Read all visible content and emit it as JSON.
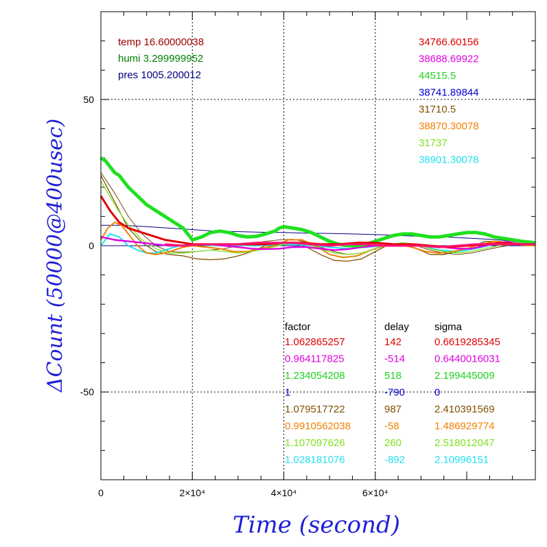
{
  "chart_data": {
    "type": "line",
    "title": "",
    "xlabel": "Time (second)",
    "ylabel": "ΔCount (50000@400usec)",
    "xlim": [
      0,
      95000
    ],
    "ylim": [
      -80,
      80
    ],
    "x_ticks": [
      {
        "value": 0,
        "label": "0"
      },
      {
        "value": 20000,
        "label": "2×10⁴"
      },
      {
        "value": 40000,
        "label": "4×10⁴"
      },
      {
        "value": 60000,
        "label": "6×10⁴"
      }
    ],
    "y_ticks": [
      {
        "value": 50,
        "label": "50"
      },
      {
        "value": 0,
        "label": "0"
      },
      {
        "value": -50,
        "label": "-50"
      }
    ],
    "grid": true,
    "env_labels": [
      {
        "text": "temp 16.60000038",
        "color": "#a00000"
      },
      {
        "text": "humi 3.299999952",
        "color": "#008000"
      },
      {
        "text": "pres 1005.200012",
        "color": "#000080"
      }
    ],
    "legend_values": [
      {
        "text": "34766.60156",
        "color": "#e00000"
      },
      {
        "text": "38688.69922",
        "color": "#e000e0"
      },
      {
        "text": "44515.5",
        "color": "#20d020"
      },
      {
        "text": "38741.89844",
        "color": "#0000d0"
      },
      {
        "text": "31710.5",
        "color": "#805000"
      },
      {
        "text": "38870.30078",
        "color": "#f08000"
      },
      {
        "text": "31737",
        "color": "#80e020"
      },
      {
        "text": "38901.30078",
        "color": "#20e0f0"
      }
    ],
    "table": {
      "headers": [
        "factor",
        "delay",
        "sigma"
      ],
      "rows": [
        {
          "factor": "1.062865257",
          "delay": "142",
          "sigma": "0.6619285345",
          "color": "#e00000"
        },
        {
          "factor": "0.964117825",
          "delay": "-514",
          "sigma": "0.6440016031",
          "color": "#e000e0"
        },
        {
          "factor": "1.234054208",
          "delay": "518",
          "sigma": "2.199445009",
          "color": "#20d020"
        },
        {
          "factor": "1",
          "delay": "-790",
          "sigma": "0",
          "color": "#0000d0"
        },
        {
          "factor": "1.079517722",
          "delay": "987",
          "sigma": "2.410391569",
          "color": "#805000"
        },
        {
          "factor": "0.9910562038",
          "delay": "-58",
          "sigma": "1.486929774",
          "color": "#f08000"
        },
        {
          "factor": "1.107097626",
          "delay": "260",
          "sigma": "2.518012047",
          "color": "#80e020"
        },
        {
          "factor": "1.028181076",
          "delay": "-892",
          "sigma": "2.10996151",
          "color": "#20e0f0"
        }
      ]
    },
    "series": [
      {
        "color": "#000080",
        "width": 1,
        "x": [
          0,
          5000,
          10000,
          15000,
          20000,
          25000,
          30000,
          35000,
          40000,
          45000,
          50000,
          55000,
          60000,
          65000,
          70000,
          75000,
          80000,
          85000,
          90000,
          95000
        ],
        "y": [
          7,
          7,
          6.5,
          6,
          5.5,
          5,
          4.8,
          4.6,
          4.5,
          4.3,
          4.2,
          4,
          3.8,
          3.5,
          3.2,
          3,
          2.6,
          2.2,
          1.6,
          1
        ]
      },
      {
        "color": "#000080",
        "width": 1,
        "x": [
          0,
          10000,
          20000,
          30000,
          40000,
          50000,
          60000,
          70000,
          80000,
          90000,
          95000
        ],
        "y": [
          0,
          0,
          0,
          0,
          0,
          0,
          0,
          0,
          0,
          0,
          0
        ]
      },
      {
        "color": "#805000",
        "width": 1.3,
        "x": [
          0,
          3000,
          6000,
          9000,
          12000,
          15000,
          18000,
          21000,
          24000,
          27000,
          30000,
          33000,
          36000,
          39000,
          42000,
          45000,
          48000,
          51000,
          54000,
          57000,
          60000,
          63000,
          66000,
          69000,
          72000,
          75000,
          78000,
          81000,
          84000,
          87000,
          90000,
          93000,
          95000
        ],
        "y": [
          24,
          15,
          6,
          1,
          -2,
          -3,
          -3.5,
          -4.5,
          -4.8,
          -4.5,
          -3.5,
          -2,
          0,
          1,
          1,
          -0.5,
          -3,
          -5,
          -5.3,
          -4.5,
          -2,
          0.5,
          0.5,
          -1,
          -3,
          -3,
          -2,
          -0.5,
          1.5,
          1.5,
          0.5,
          0,
          0
        ]
      },
      {
        "color": "#6b4a10",
        "width": 1,
        "x": [
          0,
          3000,
          6000,
          9000,
          12000,
          15000,
          18000,
          21000,
          24000,
          27000,
          30000,
          33000,
          36000,
          39000,
          42000,
          45000,
          48000,
          51000,
          54000,
          57000,
          60000,
          63000,
          66000,
          69000,
          72000,
          75000,
          78000,
          81000,
          84000,
          87000,
          90000,
          93000,
          95000
        ],
        "y": [
          25,
          18,
          10,
          4,
          0,
          -2,
          -2.2,
          -2,
          -1.5,
          -1,
          0,
          0.8,
          1.5,
          2,
          2.2,
          1.2,
          -0.5,
          -2,
          -3,
          -2.5,
          -1,
          0.5,
          0.8,
          0,
          -1.5,
          -2.5,
          -3,
          -2.5,
          -1.5,
          -0.5,
          0.3,
          0.5,
          0.5
        ]
      },
      {
        "color": "#20e0f0",
        "width": 2,
        "x": [
          0,
          2000,
          4000,
          6000,
          8000,
          10000,
          12000,
          14000,
          16000,
          18000,
          20000,
          22000,
          26000,
          30000,
          34000,
          38000,
          42000,
          46000,
          50000,
          54000,
          58000,
          62000,
          66000,
          70000,
          74000,
          78000,
          82000,
          86000,
          90000,
          95000
        ],
        "y": [
          0,
          4,
          3,
          0,
          -1.5,
          -2.5,
          -2.5,
          -1.5,
          -0.5,
          0.2,
          0.5,
          0.3,
          0,
          0.2,
          0,
          0.3,
          0.5,
          0,
          -0.5,
          -1,
          -0.5,
          0,
          0.5,
          0,
          -1.5,
          -2,
          -1,
          0.5,
          0.5,
          0.5
        ]
      },
      {
        "color": "#f08000",
        "width": 2,
        "x": [
          0,
          1500,
          3000,
          4500,
          6000,
          8000,
          10000,
          12000,
          14000,
          16000,
          18000,
          20000,
          23000,
          26000,
          29000,
          32000,
          35000,
          38000,
          41000,
          44000,
          47000,
          50000,
          53000,
          56000,
          59000,
          62000,
          65000,
          68000,
          71000,
          74000,
          77000,
          80000,
          83000,
          86000,
          89000,
          92000,
          95000
        ],
        "y": [
          2,
          6,
          8,
          7,
          4,
          0,
          -2.5,
          -3,
          -2.5,
          -1.5,
          -0.5,
          0,
          -0.5,
          -1,
          -2,
          -2,
          -1,
          0,
          2,
          2,
          0,
          -3,
          -4,
          -3.5,
          -1.5,
          0,
          0.5,
          -0.5,
          -2,
          -2.5,
          -2,
          -1,
          0.5,
          1.5,
          1,
          0.3,
          0
        ]
      },
      {
        "color": "#80e020",
        "width": 1.3,
        "x": [
          0,
          3000,
          6000,
          9000,
          12000,
          15000,
          18000,
          21000,
          24000,
          27000,
          30000,
          33000,
          36000,
          39000,
          42000,
          45000,
          48000,
          51000,
          54000,
          57000,
          60000,
          63000,
          66000,
          69000,
          72000,
          75000,
          78000,
          81000,
          84000,
          87000,
          90000,
          93000,
          95000
        ],
        "y": [
          22,
          14,
          7,
          2,
          -1,
          -2.5,
          -2.5,
          -2,
          -1.5,
          -2,
          -2.5,
          -2,
          -1,
          0,
          1,
          0.5,
          -1,
          -2.5,
          -3,
          -2.5,
          -1,
          0.5,
          1,
          0.5,
          -1,
          -2,
          -2.5,
          -2,
          -1,
          0,
          0.5,
          0.5,
          0.5
        ]
      },
      {
        "color": "#e000e0",
        "width": 2.4,
        "x": [
          0,
          3000,
          6000,
          9000,
          12000,
          15000,
          18000,
          21000,
          24000,
          27000,
          30000,
          33000,
          36000,
          39000,
          42000,
          45000,
          48000,
          51000,
          54000,
          57000,
          60000,
          63000,
          66000,
          69000,
          72000,
          75000,
          78000,
          81000,
          84000,
          87000,
          90000,
          93000,
          95000
        ],
        "y": [
          3,
          2,
          1.5,
          1,
          0.5,
          0,
          0,
          0.5,
          0.5,
          0,
          -0.5,
          -1,
          -1.2,
          -1,
          -0.5,
          -0.5,
          -1,
          -1.5,
          -1.2,
          -0.5,
          0,
          0,
          0.5,
          0.5,
          0,
          -0.5,
          -1,
          -1,
          0,
          1,
          1.5,
          1,
          0.5
        ]
      },
      {
        "color": "#20e020",
        "width": 5,
        "x": [
          0,
          1000,
          2000,
          3000,
          4000,
          5000,
          6000,
          8000,
          10000,
          12000,
          14000,
          16000,
          18000,
          19000,
          20000,
          22000,
          24000,
          26000,
          28000,
          30000,
          32000,
          34000,
          36000,
          38000,
          39000,
          40000,
          42000,
          44000,
          46000,
          48000,
          50000,
          52000,
          54000,
          56000,
          58000,
          60000,
          62000,
          64000,
          66000,
          68000,
          70000,
          72000,
          74000,
          76000,
          78000,
          80000,
          82000,
          84000,
          86000,
          88000,
          90000,
          92000,
          95000
        ],
        "y": [
          30,
          29,
          27,
          25,
          24,
          22,
          20,
          17,
          14,
          12,
          10,
          8,
          6,
          4,
          2,
          3,
          4.5,
          5,
          4.5,
          3.5,
          3,
          3.2,
          4,
          5,
          6,
          6.5,
          6,
          5.5,
          4.5,
          3,
          1.5,
          0.5,
          0,
          0,
          0.5,
          1.5,
          2.5,
          3.5,
          4,
          4,
          3.5,
          3,
          3,
          3.5,
          4,
          4.5,
          4.5,
          4,
          3,
          2.5,
          2,
          1.5,
          1
        ]
      },
      {
        "color": "#e00000",
        "width": 3,
        "x": [
          0,
          2000,
          4000,
          6000,
          8000,
          10000,
          12000,
          14000,
          16000,
          18000,
          20000,
          24000,
          28000,
          32000,
          36000,
          40000,
          44000,
          48000,
          52000,
          56000,
          60000,
          64000,
          68000,
          72000,
          76000,
          80000,
          84000,
          88000,
          92000,
          95000
        ],
        "y": [
          17,
          12,
          8,
          6,
          5,
          4,
          3,
          2,
          1.5,
          1,
          0.5,
          0.5,
          0.5,
          0.5,
          0.5,
          1,
          1,
          0.5,
          0.5,
          1,
          1,
          0.5,
          0.5,
          0,
          -0.5,
          0,
          0.5,
          1,
          0.5,
          0.5
        ]
      },
      {
        "color": "#ff1070",
        "width": 3,
        "x": [
          14000,
          18000,
          22000,
          26000,
          30000,
          34000,
          38000,
          42000,
          46000,
          50000,
          54000,
          58000,
          62000,
          66000,
          70000,
          74000,
          78000,
          82000,
          86000,
          90000,
          95000
        ],
        "y": [
          0.5,
          0,
          0.5,
          0.5,
          0.5,
          1,
          1,
          1,
          0.5,
          0,
          0.5,
          0.5,
          0,
          0,
          0,
          -0.5,
          0,
          0.5,
          0.5,
          0.5,
          0.5
        ]
      }
    ]
  }
}
